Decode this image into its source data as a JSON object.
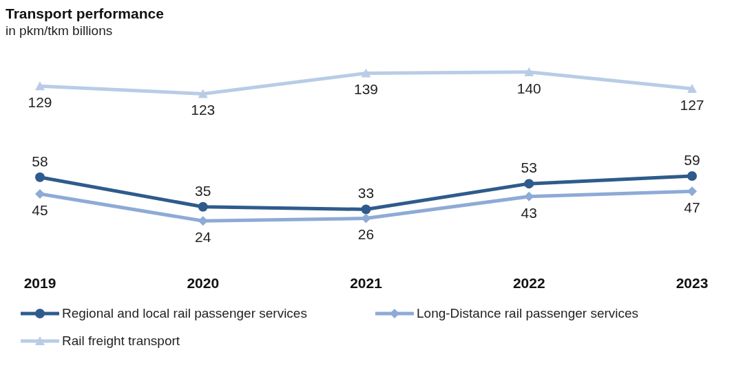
{
  "chart_data": {
    "type": "line",
    "title": "Transport performance",
    "subtitle": "in pkm/tkm billions",
    "categories": [
      "2019",
      "2020",
      "2021",
      "2022",
      "2023"
    ],
    "series": [
      {
        "name": "Regional and local rail passenger services",
        "color": "#2f5b8c",
        "values": [
          58,
          35,
          33,
          53,
          59
        ],
        "marker": "circle"
      },
      {
        "name": "Long-Distance rail passenger services",
        "color": "#8eaad6",
        "values": [
          45,
          24,
          26,
          43,
          47
        ],
        "marker": "diamond"
      },
      {
        "name": "Rail freight transport",
        "color": "#b9cce6",
        "values": [
          129,
          123,
          139,
          140,
          127
        ],
        "marker": "triangle"
      }
    ],
    "data_labels": true,
    "grid": false,
    "legend": "bottom",
    "tick_labels": "x"
  }
}
